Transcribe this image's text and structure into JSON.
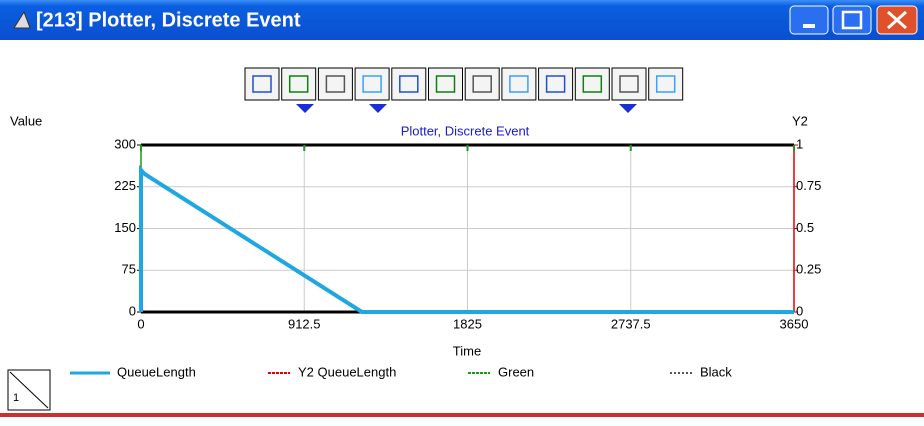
{
  "window": {
    "title": "[213]  Plotter, Discrete Event"
  },
  "chart_data": {
    "type": "line",
    "title": "Plotter, Discrete Event",
    "y_label": "Value",
    "y2_label": "Y2",
    "x_label": "Time",
    "x": [
      0,
      0,
      20,
      1235,
      3650
    ],
    "series": [
      {
        "name": "QueueLength",
        "color": "#1ea7e1",
        "values": [
          0,
          255,
          248,
          0,
          0
        ]
      },
      {
        "name": "Y2 QueueLength",
        "color": "#e00000",
        "axis": "y2"
      },
      {
        "name": "Green",
        "color": "#1a9a1a"
      },
      {
        "name": "Black",
        "color": "#555555"
      }
    ],
    "xlim": [
      0,
      3650
    ],
    "xticks": [
      0,
      912.5,
      1825,
      2737.5,
      3650
    ],
    "ylim": [
      0,
      300
    ],
    "yticks": [
      0,
      75,
      150,
      225,
      300
    ],
    "y2lim": [
      0,
      1
    ],
    "y2ticks": [
      0,
      0.25,
      0.5,
      0.75,
      1
    ],
    "grid": true
  },
  "page_number": "1"
}
